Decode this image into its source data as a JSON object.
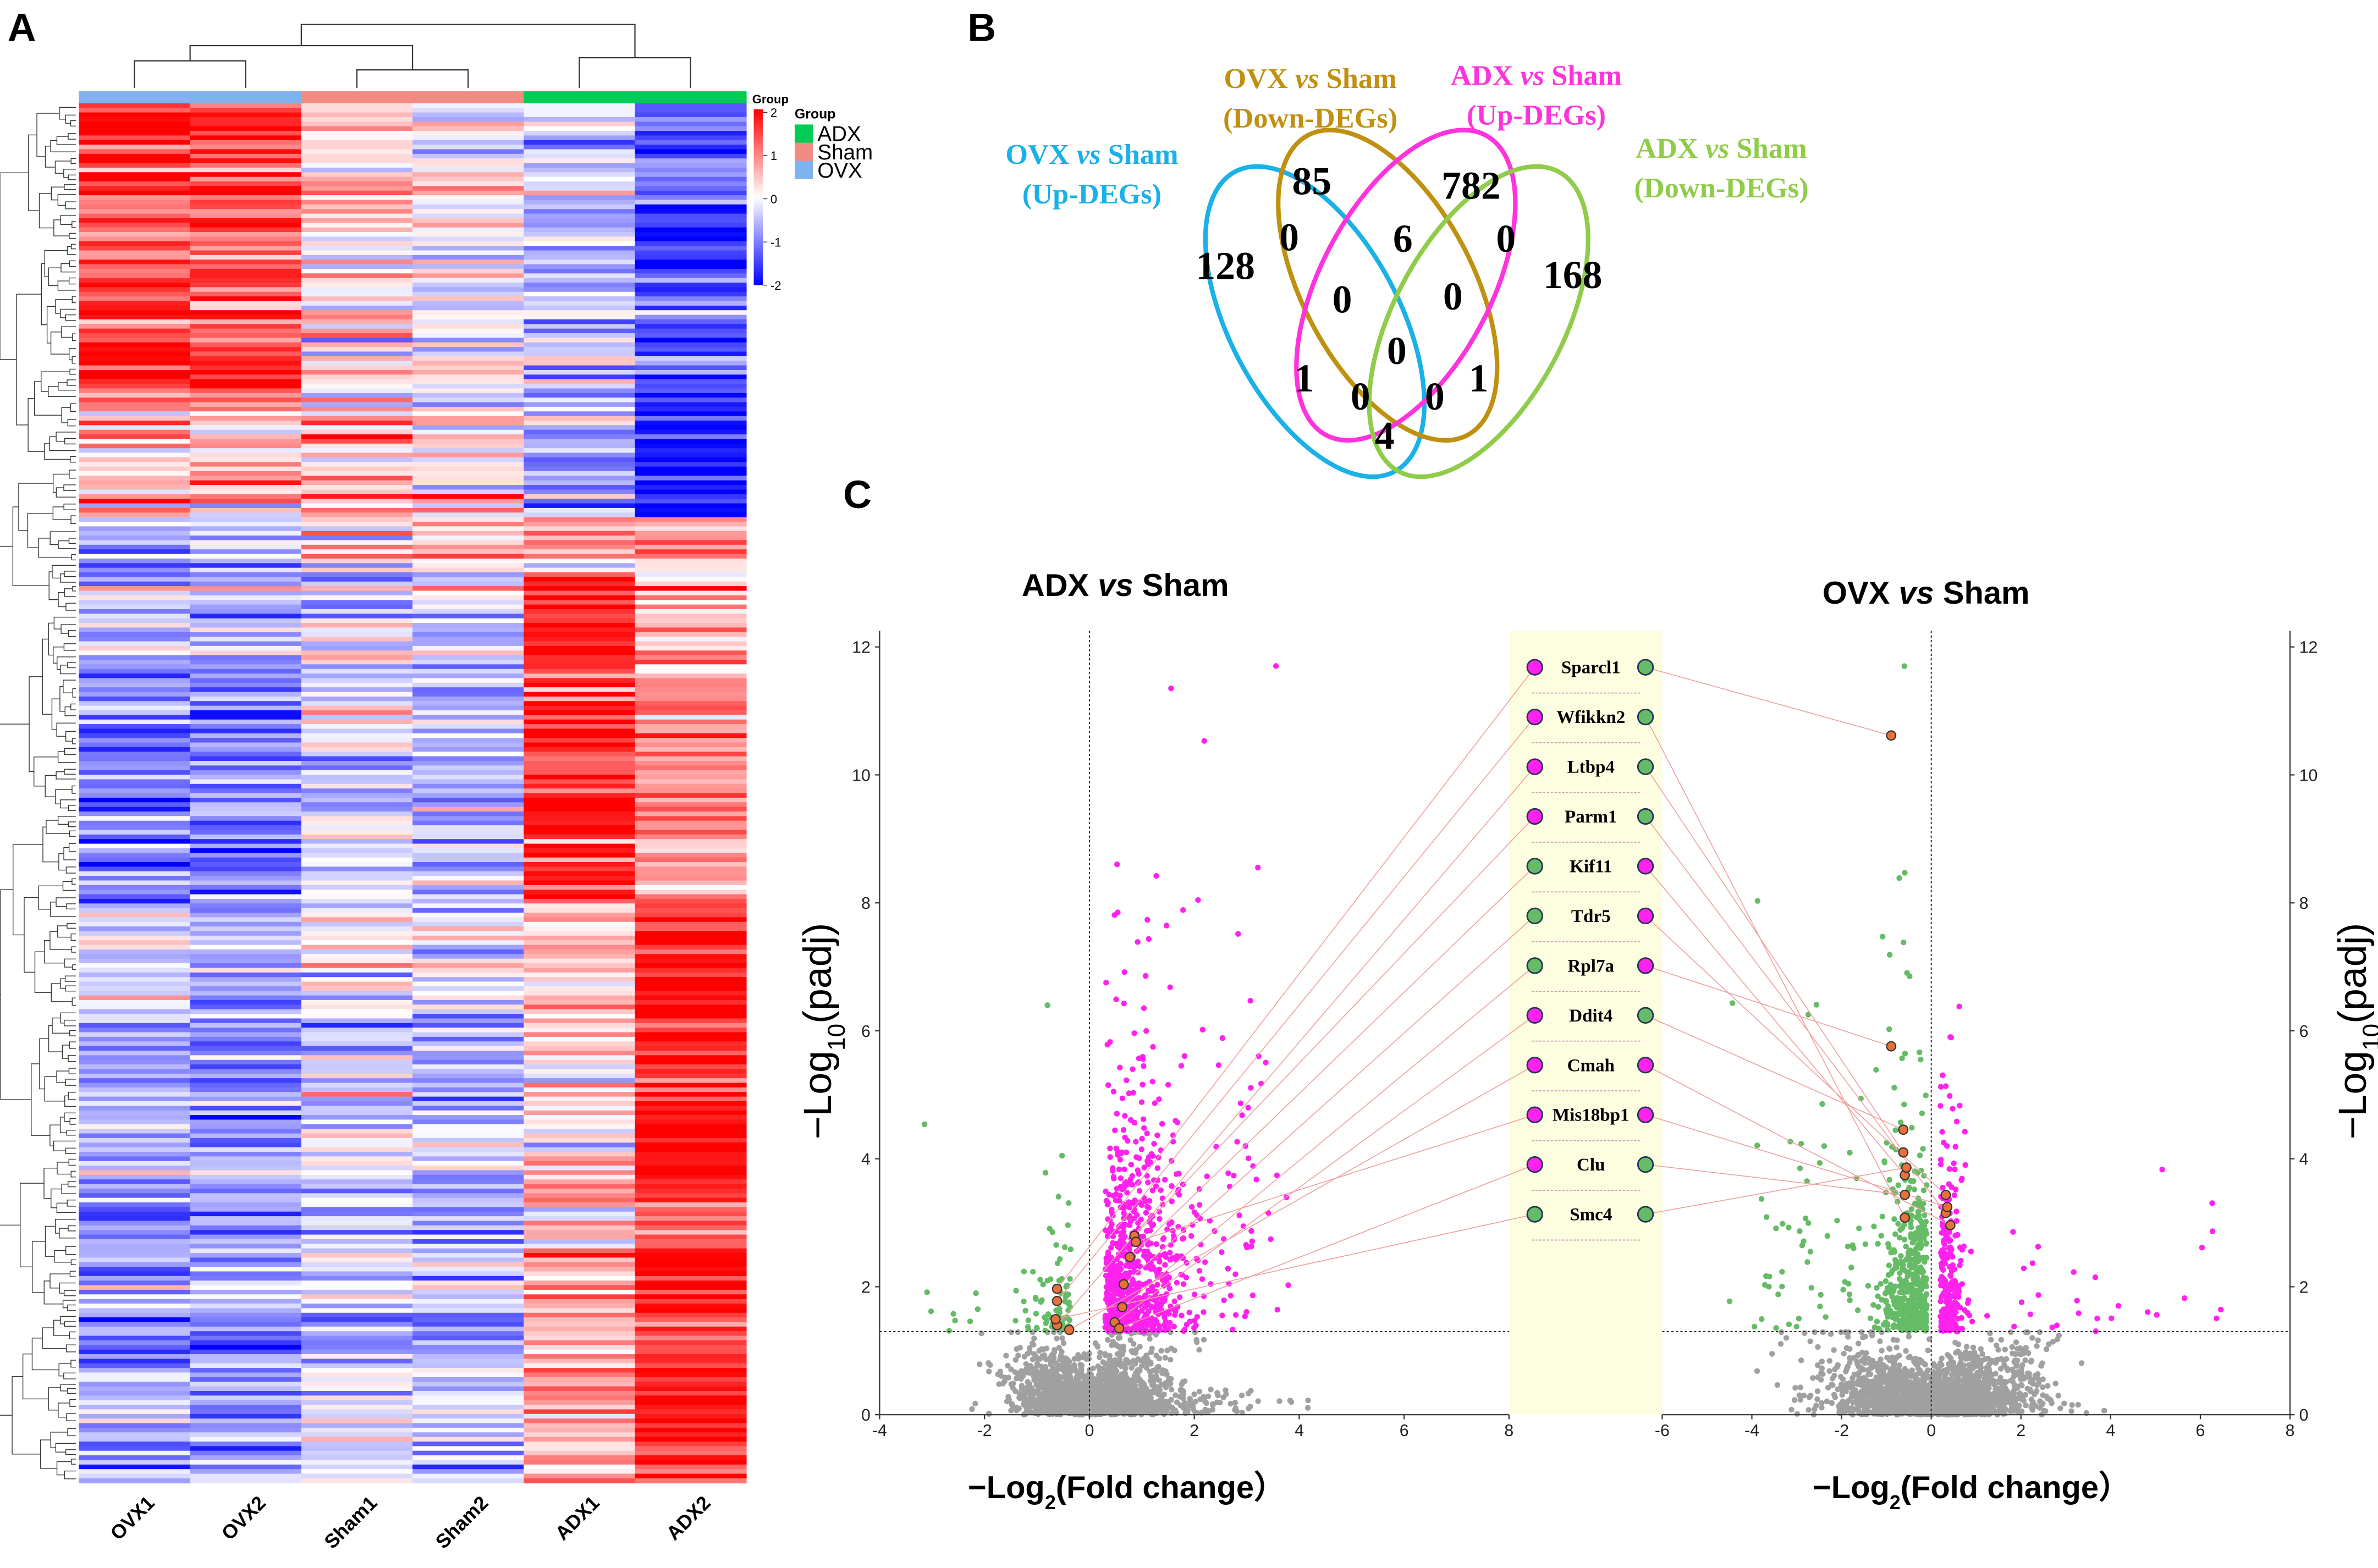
{
  "panels": {
    "a": "A",
    "b": "B",
    "c": "C"
  },
  "colors": {
    "heat_high": "#ff0000",
    "heat_mid": "#ffffff",
    "heat_low": "#0000ff",
    "group_adx": "#00cc55",
    "group_sham": "#f28b82",
    "group_ovx": "#7fb3f0",
    "venn_ovx_up": "#1ab0e8",
    "venn_ovx_down": "#c09010",
    "venn_adx_up": "#ff33dd",
    "venn_adx_down": "#8fcc4a",
    "up": "#ff22ee",
    "down": "#66bb66",
    "ns": "#a0a0a0",
    "highlight": "#e8703a",
    "gene_box": "#fdfde0"
  },
  "chart_data": [
    {
      "type": "heatmap",
      "columns": [
        "OVX1",
        "OVX2",
        "Sham1",
        "Sham2",
        "ADX1",
        "ADX2"
      ],
      "column_groups": [
        "OVX",
        "OVX",
        "Sham",
        "Sham",
        "ADX",
        "ADX"
      ],
      "legend": {
        "group_title": "Group",
        "scale_title": "Group",
        "groups": [
          "ADX",
          "Sham",
          "OVX"
        ],
        "scale_ticks": [
          "2",
          "1",
          "0",
          "-1",
          "-2"
        ],
        "range": [
          -2,
          2
        ]
      },
      "row_dendrogram": true,
      "column_dendrogram": true
    },
    {
      "type": "venn",
      "sets": [
        {
          "line1": "OVX",
          "vs": "vs",
          "line1b": "Sham",
          "line2": "(Up-DEGs)"
        },
        {
          "line1": "OVX",
          "vs": "vs",
          "line1b": "Sham",
          "line2": "(Down-DEGs)"
        },
        {
          "line1": "ADX",
          "vs": "vs",
          "line1b": "Sham",
          "line2": "(Up-DEGs)"
        },
        {
          "line1": "ADX",
          "vs": "vs",
          "line1b": "Sham",
          "line2": "(Down-DEGs)"
        }
      ],
      "counts": [
        "85",
        "782",
        "128",
        "0",
        "6",
        "0",
        "168",
        "0",
        "0",
        "0",
        "1",
        "0",
        "0",
        "1",
        "4"
      ]
    },
    {
      "type": "scatter",
      "title": {
        "a": "ADX",
        "vs": "vs",
        "b": "Sham"
      },
      "xlabel": {
        "pre": "−Log",
        "sub": "2",
        "post": "(Fold change）"
      },
      "ylabel": {
        "pre": "−Log",
        "sub": "10",
        "post": "(padj)"
      },
      "xlim": [
        -4,
        8
      ],
      "ylim": [
        0,
        12
      ],
      "xticks": [
        "-4",
        "-2",
        "0",
        "2",
        "4",
        "6",
        "8"
      ],
      "yticks": [
        "0",
        "2",
        "4",
        "6",
        "8",
        "10",
        "12"
      ],
      "padj_threshold": 1.3,
      "fc_threshold": 0
    },
    {
      "type": "scatter",
      "title": {
        "a": "OVX",
        "vs": "vs",
        "b": "Sham"
      },
      "xlabel": {
        "pre": "−Log",
        "sub": "2",
        "post": "(Fold change）"
      },
      "ylabel": {
        "pre": "−Log",
        "sub": "10",
        "post": "(padj)"
      },
      "xlim": [
        -6,
        8
      ],
      "ylim": [
        0,
        12
      ],
      "xticks": [
        "-6",
        "-4",
        "-2",
        "0",
        "2",
        "4",
        "6",
        "8"
      ],
      "yticks": [
        "0",
        "2",
        "4",
        "6",
        "8",
        "10",
        "12"
      ],
      "padj_threshold": 1.3,
      "fc_threshold": 0
    }
  ],
  "genes": [
    {
      "name": "Sparcl1",
      "adx": "up",
      "ovx": "down"
    },
    {
      "name": "Wfikkn2",
      "adx": "up",
      "ovx": "down"
    },
    {
      "name": "Ltbp4",
      "adx": "up",
      "ovx": "down"
    },
    {
      "name": "Parm1",
      "adx": "up",
      "ovx": "down"
    },
    {
      "name": "Kif11",
      "adx": "down",
      "ovx": "up"
    },
    {
      "name": "Tdr5",
      "adx": "down",
      "ovx": "up"
    },
    {
      "name": "Rpl7a",
      "adx": "down",
      "ovx": "up"
    },
    {
      "name": "Ddit4",
      "adx": "up",
      "ovx": "down"
    },
    {
      "name": "Cmah",
      "adx": "up",
      "ovx": "up"
    },
    {
      "name": "Mis18bp1",
      "adx": "up",
      "ovx": "up"
    },
    {
      "name": "Clu",
      "adx": "up",
      "ovx": "down"
    },
    {
      "name": "Smc4",
      "adx": "down",
      "ovx": "down"
    }
  ]
}
